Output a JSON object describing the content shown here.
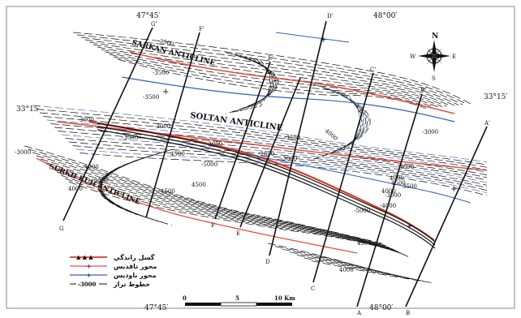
{
  "coordinates": {
    "lon_top_left": "47°45′",
    "lon_top_right": "48°00′",
    "lon_bottom_left": "47°45′",
    "lon_bottom_right": "48°00′",
    "lat_left": "33°15′",
    "lat_right": "33°15′"
  },
  "north_arrow": {
    "n": "N",
    "s": "S",
    "e": "E",
    "w": "W"
  },
  "anticlines": {
    "sarkan": "SARKAN ANTICLINE",
    "soltan": "SOLTAN ANTICLINE",
    "kuh": "SURKH KUH ANTICLINE"
  },
  "section_labels": {
    "g_top": "G'",
    "f_top": "F'",
    "e_top": "E'",
    "d_top": "D'",
    "c_top": "C'",
    "b_top": "B'",
    "a_top": "A'",
    "g_bot": "G",
    "f_bot": "F",
    "e_bot": "E",
    "d_bot": "D",
    "c_bot": "C",
    "b_bot": "B",
    "a_bot": "A"
  },
  "contour_labels": {
    "c1": "-3500",
    "c2": "-3500",
    "c3": "-3500",
    "c4": "4000",
    "c5": "-3500",
    "c6": "-3500",
    "c7": "-3000",
    "c8": "-5000",
    "c9": "-2800",
    "c10": "-3000",
    "c11": "4500",
    "c12": "4000",
    "c13": "3500",
    "c14": "-3000",
    "c15": "-4000",
    "c16": "4500",
    "c17": "-3000",
    "c18": "4000",
    "c19": "-5000",
    "c20": "-3000",
    "c21": "4000",
    "c22": "4500",
    "c23": "4000",
    "c24": "3500",
    "c25": "-4000",
    "c26": "-3000",
    "c27": "4500",
    "c28": "4500",
    "c29": "4000",
    "c30": "3000"
  },
  "legend": {
    "fault": "گسل رانذگي",
    "anticline_axis": "محور تاقديس",
    "syncline_axis": "محور ناوديس",
    "contour_value": "-3000",
    "contour_label": "خطوط تراز"
  },
  "scale": {
    "zero": "0",
    "five": "5",
    "ten": "10 Km"
  },
  "colors": {
    "fault": "#d9392b",
    "anticline": "#e0524a",
    "syncline": "#3b5fb0",
    "contour": "#111111",
    "contour_blue": "#4e6bb5"
  }
}
